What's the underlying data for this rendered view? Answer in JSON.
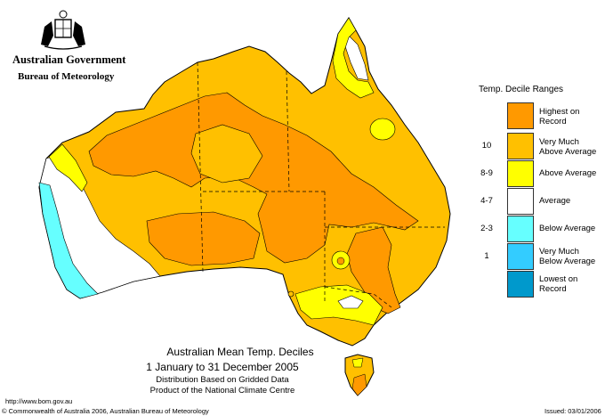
{
  "branding": {
    "government": "Australian Government",
    "bureau": "Bureau of Meteorology"
  },
  "legend": {
    "title": "Temp. Decile Ranges",
    "items": [
      {
        "decile": "",
        "label": "Highest on Record",
        "line1": "Highest on",
        "line2": "Record",
        "color": "#ff9900"
      },
      {
        "decile": "10",
        "label": "Very Much Above Average",
        "line1": "Very Much",
        "line2": "Above Average",
        "color": "#ffc000"
      },
      {
        "decile": "8-9",
        "label": "Above Average",
        "line1": "Above Average",
        "line2": "",
        "color": "#ffff00"
      },
      {
        "decile": "4-7",
        "label": "Average",
        "line1": "Average",
        "line2": "",
        "color": "#ffffff"
      },
      {
        "decile": "2-3",
        "label": "Below Average",
        "line1": "Below Average",
        "line2": "",
        "color": "#66ffff"
      },
      {
        "decile": "1",
        "label": "Very Much Below Average",
        "line1": "Very Much",
        "line2": "Below Average",
        "color": "#33ccff"
      },
      {
        "decile": "",
        "label": "Lowest on Record",
        "line1": "Lowest on",
        "line2": "Record",
        "color": "#0099cc"
      }
    ]
  },
  "titles": {
    "line1": "Australian Mean Temp. Deciles",
    "line2": "1 January to 31 December 2005",
    "line3": "Distribution Based on Gridded Data",
    "line4": "Product of the National Climate Centre"
  },
  "footer": {
    "url": "http://www.bom.gov.au",
    "copyright": "© Commonwealth of Australia 2006, Australian Bureau of Meteorology",
    "issued": "Issued: 03/01/2006"
  }
}
